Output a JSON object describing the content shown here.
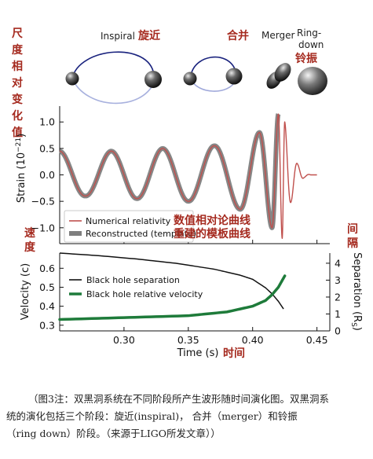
{
  "phases": {
    "inspiral_en": "Inspiral",
    "inspiral_zh": "旋近",
    "merger_zh": "合并",
    "merger_en": "Merger",
    "ringdown_en_1": "Ring-",
    "ringdown_en_2": "down",
    "ringdown_zh": "铃振"
  },
  "cn_labels": {
    "strain_vertical": [
      "尺",
      "度",
      "相",
      "对",
      "变",
      "化",
      "值"
    ],
    "velocity_vertical": [
      "速",
      "度"
    ],
    "separation_vertical": [
      "间",
      "隔"
    ],
    "numerical_zh": "数值相对论曲线",
    "reconstructed_zh": "重建的模板曲线",
    "time_zh": "时间"
  },
  "chart_data": [
    {
      "type": "line",
      "panel": "strain",
      "ylabel_text": "Strain (10",
      "ylabel_exp": "−21",
      "ylabel_close": ")",
      "ylim": [
        -1.3,
        1.3
      ],
      "yticks": [
        "1.0",
        "0.5",
        "0.0",
        "−0.5",
        "−1.0"
      ],
      "ytick_values": [
        1.0,
        0.5,
        0.0,
        -0.5,
        -1.0
      ],
      "xlim": [
        0.25,
        0.46
      ],
      "grid": false,
      "legend_position": "bottom-left",
      "series": [
        {
          "name": "Numerical relativity",
          "color": "#c0504d",
          "x": [
            0.25,
            0.27,
            0.29,
            0.31,
            0.33,
            0.35,
            0.37,
            0.39,
            0.405,
            0.415,
            0.42,
            0.423,
            0.425,
            0.43,
            0.435,
            0.44,
            0.445,
            0.45
          ],
          "y": [
            0.45,
            -0.4,
            0.45,
            -0.45,
            0.5,
            -0.5,
            0.55,
            -0.65,
            0.8,
            -1.0,
            1.15,
            -1.2,
            1.0,
            -0.5,
            0.2,
            -0.05,
            0.0,
            0.0
          ]
        },
        {
          "name": "Reconstructed (template)",
          "color": "#7f7f7f",
          "x": [
            0.25,
            0.27,
            0.29,
            0.31,
            0.33,
            0.35,
            0.37,
            0.39,
            0.405,
            0.415,
            0.42
          ],
          "y": [
            0.45,
            -0.4,
            0.45,
            -0.45,
            0.5,
            -0.5,
            0.55,
            -0.65,
            0.78,
            -0.95,
            1.05
          ]
        }
      ]
    },
    {
      "type": "line",
      "panel": "velocity",
      "xlabel": "Time (s)",
      "ylabel": "Velocity (c)",
      "ylabel_right_text": "Separation (R",
      "ylabel_right_sub": "S",
      "ylabel_right_close": ")",
      "xlim": [
        0.25,
        0.46
      ],
      "xticks": [
        "0.30",
        "0.35",
        "0.40",
        "0.45"
      ],
      "xtick_values": [
        0.3,
        0.35,
        0.4,
        0.45
      ],
      "ylim": [
        0.27,
        0.68
      ],
      "yticks": [
        "0.6",
        "0.5",
        "0.4",
        "0.3"
      ],
      "ytick_values": [
        0.6,
        0.5,
        0.4,
        0.3
      ],
      "y2lim": [
        0,
        4.6
      ],
      "y2ticks": [
        "4",
        "3",
        "2",
        "1",
        "0"
      ],
      "y2tick_values": [
        4,
        3,
        2,
        1,
        0
      ],
      "grid": false,
      "legend_position": "top-left",
      "series": [
        {
          "name": "Black hole separation",
          "color": "#111111",
          "axis": "right",
          "x": [
            0.25,
            0.28,
            0.31,
            0.34,
            0.37,
            0.39,
            0.4,
            0.41,
            0.415,
            0.42,
            0.424
          ],
          "y": [
            4.6,
            4.45,
            4.25,
            4.0,
            3.65,
            3.3,
            3.05,
            2.55,
            2.2,
            1.75,
            1.3
          ]
        },
        {
          "name": "Black hole relative velocity",
          "color": "#1e7b3a",
          "axis": "left",
          "x": [
            0.25,
            0.3,
            0.35,
            0.38,
            0.4,
            0.41,
            0.415,
            0.42,
            0.425
          ],
          "y": [
            0.33,
            0.34,
            0.35,
            0.37,
            0.4,
            0.43,
            0.46,
            0.5,
            0.56
          ]
        }
      ]
    }
  ],
  "caption": {
    "line1": "（图3注：双黑洞系统在不同阶段所产生波形随时间演化图。双黑洞系",
    "line2": "统的演化包括三个阶段：旋近(inspiral)， 合并（merger）和铃振",
    "line3": "（ring  down）阶段。（来源于LIGO所发文章））"
  }
}
